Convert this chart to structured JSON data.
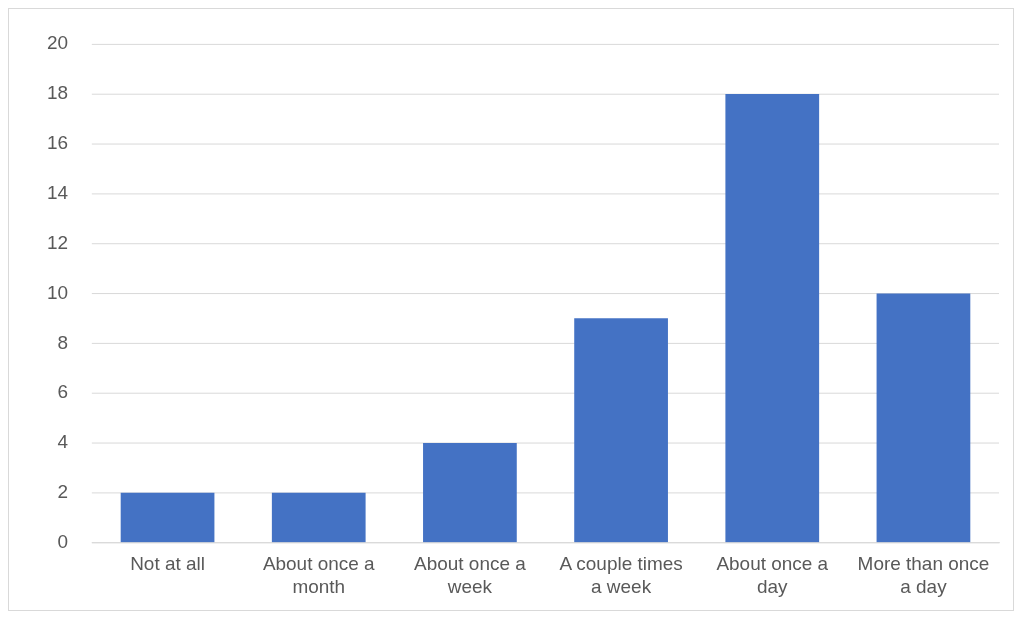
{
  "chart_data": {
    "type": "bar",
    "categories": [
      "Not at all",
      "About once a month",
      "About once a week",
      "A couple times a week",
      "About once a day",
      "More than once a day"
    ],
    "values": [
      2,
      2,
      4,
      9,
      18,
      10
    ],
    "color": "#4472c4",
    "ylim": [
      0,
      20
    ],
    "yticks": [
      0,
      2,
      4,
      6,
      8,
      10,
      12,
      14,
      16,
      18,
      20
    ],
    "grid": "y",
    "legend": false
  }
}
